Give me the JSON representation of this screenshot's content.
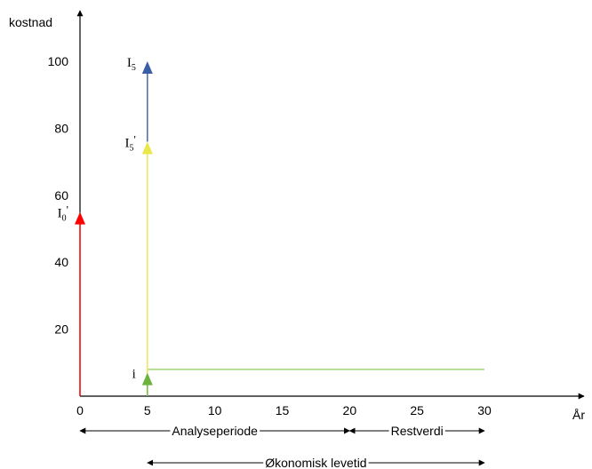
{
  "chart_data": {
    "type": "line",
    "ylabel": "kostnad",
    "xlabel": "År",
    "xlim": [
      0,
      30
    ],
    "ylim": [
      0,
      100
    ],
    "x_ticks": [
      "0",
      "5",
      "10",
      "15",
      "20",
      "25",
      "30"
    ],
    "y_ticks": [
      "20",
      "40",
      "60",
      "80",
      "100"
    ],
    "arrows": [
      {
        "label": "I",
        "sub": "0",
        "prime": "'",
        "x": 0,
        "y_from": 0,
        "y_to": 55,
        "color": "#ff0000"
      },
      {
        "label": "I",
        "sub": "5",
        "prime": "'",
        "x": 5,
        "y_from": 0,
        "y_to": 76,
        "color": "#e8e84a"
      },
      {
        "label": "I",
        "sub": "5",
        "prime": "",
        "x": 5,
        "y_from": 76,
        "y_to": 100,
        "color": "#3a5fa5"
      },
      {
        "label": "i",
        "sub": "",
        "prime": "",
        "x": 5,
        "y_from": 0,
        "y_to": 7,
        "color": "#6cb33e"
      }
    ],
    "level_line": {
      "x_from": 5,
      "x_to": 30,
      "y": 8,
      "color": "#8fd15a"
    },
    "spans": [
      {
        "label": "Analyseperiode",
        "x_from": 0,
        "x_to": 20
      },
      {
        "label": "Restverdi",
        "x_from": 20,
        "x_to": 30
      },
      {
        "label": "Økonomisk levetid",
        "x_from": 5,
        "x_to": 30
      }
    ]
  }
}
